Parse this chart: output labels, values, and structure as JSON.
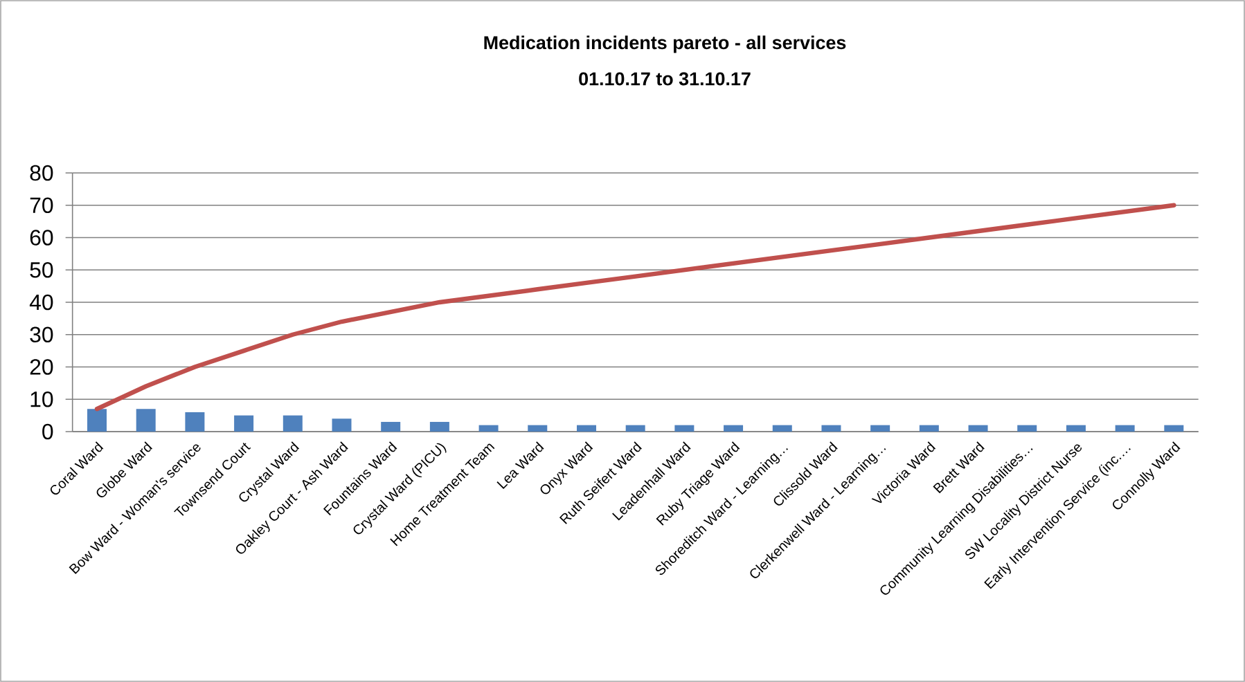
{
  "chart_data": {
    "type": "bar",
    "title": "Medication incidents pareto - all services",
    "subtitle": "01.10.17 to 31.10.17",
    "categories": [
      "Coral Ward",
      "Globe Ward",
      "Bow Ward - Woman's service",
      "Townsend Court",
      "Crystal Ward",
      "Oakley Court - Ash Ward",
      "Fountains Ward",
      "Crystal Ward (PICU)",
      "Home Treatment Team",
      "Lea Ward",
      "Onyx Ward",
      "Ruth Seifert Ward",
      "Leadenhall Ward",
      "Ruby Triage Ward",
      "Shoreditch Ward - Learning…",
      "Clissold Ward",
      "Clerkenwell Ward - Learning…",
      "Victoria Ward",
      "Brett Ward",
      "Community Learning Disabilities…",
      "SW Locality District Nurse",
      "Early Intervention Service (inc.…",
      "Connolly Ward"
    ],
    "series": [
      {
        "color": "#4f81bd",
        "values": [
          7,
          7,
          6,
          5,
          5,
          4,
          3,
          3,
          2,
          2,
          2,
          2,
          2,
          2,
          2,
          2,
          2,
          2,
          2,
          2,
          2,
          2,
          2
        ]
      },
      {
        "type": "line",
        "color": "#c0504d",
        "values": [
          7,
          14,
          20,
          25,
          30,
          34,
          37,
          40,
          42,
          44,
          46,
          48,
          50,
          52,
          54,
          56,
          58,
          60,
          62,
          64,
          66,
          68,
          70
        ]
      }
    ],
    "ylim": [
      0,
      80
    ],
    "yticks": [
      0,
      10,
      20,
      30,
      40,
      50,
      60,
      70,
      80
    ],
    "grid": "y",
    "marker": "none"
  }
}
